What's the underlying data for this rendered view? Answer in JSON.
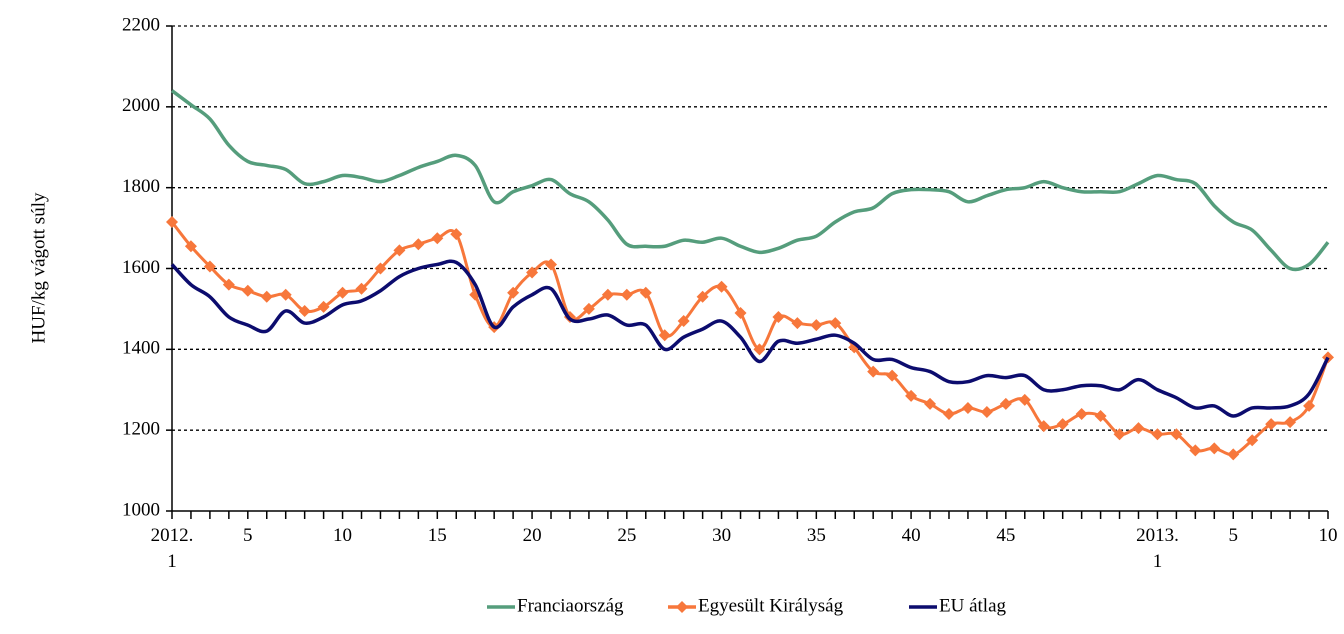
{
  "chart_data": {
    "type": "line",
    "ylabel": "HUF/kg vágott súly",
    "categories": [
      "2012.\n1",
      null,
      null,
      null,
      "5",
      null,
      null,
      null,
      null,
      "10",
      null,
      null,
      null,
      null,
      "15",
      null,
      null,
      null,
      null,
      "20",
      null,
      null,
      null,
      null,
      "25",
      null,
      null,
      null,
      null,
      "30",
      null,
      null,
      null,
      null,
      "35",
      null,
      null,
      null,
      null,
      "40",
      null,
      null,
      null,
      null,
      "45",
      null,
      null,
      null,
      null,
      null,
      null,
      null,
      "2013.\n1",
      null,
      null,
      null,
      "5",
      null,
      null,
      null,
      null,
      "10"
    ],
    "series": [
      {
        "name": "Franciaország",
        "color": "#559d7c",
        "values": [
          2040,
          2005,
          1970,
          1905,
          1865,
          1855,
          1845,
          1810,
          1815,
          1830,
          1825,
          1815,
          1830,
          1850,
          1865,
          1880,
          1855,
          1765,
          1790,
          1805,
          1820,
          1785,
          1765,
          1720,
          1660,
          1655,
          1655,
          1670,
          1665,
          1675,
          1655,
          1640,
          1650,
          1670,
          1680,
          1715,
          1740,
          1750,
          1785,
          1795,
          1795,
          1790,
          1765,
          1780,
          1795,
          1800,
          1815,
          1800,
          1790,
          1790,
          1790,
          1810,
          1830,
          1820,
          1810,
          1755,
          1715,
          1695,
          1645,
          1600,
          1610,
          1665
        ]
      },
      {
        "name": "Egyesült Királyság",
        "color": "#f7773b",
        "marker": "diamond",
        "values": [
          1715,
          1655,
          1605,
          1560,
          1545,
          1530,
          1535,
          1495,
          1505,
          1540,
          1550,
          1600,
          1645,
          1660,
          1675,
          1685,
          1535,
          1455,
          1540,
          1590,
          1610,
          1480,
          1500,
          1535,
          1535,
          1540,
          1435,
          1470,
          1530,
          1555,
          1490,
          1400,
          1480,
          1465,
          1460,
          1465,
          1405,
          1345,
          1335,
          1285,
          1265,
          1240,
          1255,
          1245,
          1265,
          1275,
          1210,
          1215,
          1240,
          1235,
          1190,
          1205,
          1190,
          1190,
          1150,
          1155,
          1140,
          1175,
          1215,
          1220,
          1260,
          1380
        ]
      },
      {
        "name": "EU átlag",
        "color": "#0c0c6e",
        "values": [
          1610,
          1560,
          1530,
          1480,
          1460,
          1445,
          1495,
          1465,
          1480,
          1510,
          1520,
          1545,
          1580,
          1600,
          1610,
          1615,
          1560,
          1455,
          1505,
          1535,
          1550,
          1475,
          1475,
          1485,
          1460,
          1460,
          1400,
          1430,
          1450,
          1470,
          1430,
          1370,
          1420,
          1415,
          1425,
          1435,
          1415,
          1375,
          1375,
          1355,
          1345,
          1320,
          1320,
          1335,
          1330,
          1335,
          1300,
          1300,
          1310,
          1310,
          1300,
          1325,
          1300,
          1280,
          1255,
          1260,
          1235,
          1255,
          1255,
          1260,
          1290,
          1380
        ]
      }
    ],
    "ylim": [
      1000,
      2200
    ],
    "yticks": [
      1000,
      1200,
      1400,
      1600,
      1800,
      2000,
      2200
    ],
    "grid": true,
    "legend": "bottom"
  }
}
